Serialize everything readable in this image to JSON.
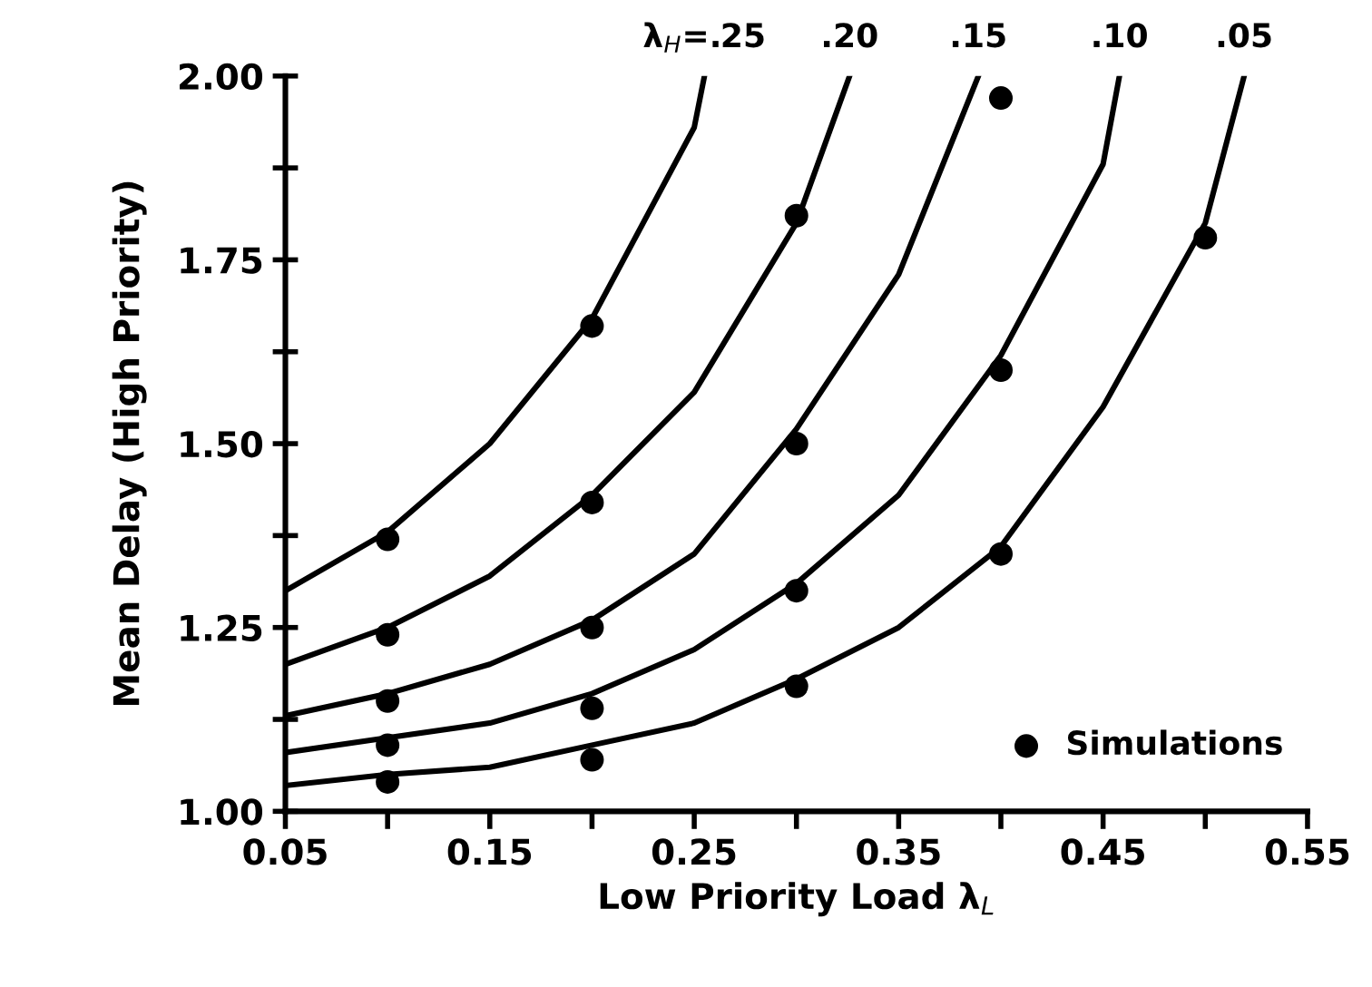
{
  "chart_data": {
    "type": "line",
    "xlabel": "Low Priority Load λ$_{L}$",
    "ylabel": "Mean Delay (High Priority)",
    "xlim": [
      0.05,
      0.55
    ],
    "ylim": [
      1.0,
      2.0
    ],
    "xticks": [
      0.05,
      {
        "value": 0.1,
        "label": null
      },
      0.15,
      {
        "value": 0.2,
        "label": null
      },
      0.25,
      {
        "value": 0.3,
        "label": null
      },
      0.35,
      {
        "value": 0.4,
        "label": null
      },
      0.45,
      {
        "value": 0.5,
        "label": null
      },
      0.55
    ],
    "yticks": [
      {
        "value": 1.0,
        "label": "1.00"
      },
      {
        "value": 1.125,
        "label": null
      },
      1.25,
      {
        "value": 1.375,
        "label": null
      },
      {
        "value": 1.5,
        "label": "1.50"
      },
      {
        "value": 1.625,
        "label": null
      },
      1.75,
      {
        "value": 1.875,
        "label": null
      },
      {
        "value": 2.0,
        "label": "2.00"
      }
    ],
    "grid": false,
    "legend": "bottom right",
    "line_style": "solid",
    "marker": "none",
    "series": [
      {
        "name": "λ$_{H}$=.25",
        "color": "#000000",
        "x": [
          0.05,
          0.1,
          0.15,
          0.2,
          0.25,
          0.255
        ],
        "values": [
          1.3,
          1.38,
          1.5,
          1.67,
          1.93,
          2.0
        ]
      },
      {
        "name": ".20",
        "color": "#000000",
        "x": [
          0.05,
          0.1,
          0.15,
          0.2,
          0.25,
          0.3,
          0.326
        ],
        "values": [
          1.2,
          1.25,
          1.32,
          1.43,
          1.57,
          1.8,
          2.0
        ]
      },
      {
        "name": ".15",
        "color": "#000000",
        "x": [
          0.05,
          0.1,
          0.15,
          0.2,
          0.25,
          0.3,
          0.35,
          0.389
        ],
        "values": [
          1.13,
          1.16,
          1.2,
          1.26,
          1.35,
          1.52,
          1.73,
          2.0
        ]
      },
      {
        "name": ".10",
        "color": "#000000",
        "x": [
          0.05,
          0.1,
          0.15,
          0.2,
          0.25,
          0.3,
          0.35,
          0.4,
          0.45,
          0.458
        ],
        "values": [
          1.08,
          1.1,
          1.12,
          1.16,
          1.22,
          1.31,
          1.43,
          1.62,
          1.88,
          2.0
        ]
      },
      {
        "name": ".05",
        "color": "#000000",
        "x": [
          0.05,
          0.1,
          0.15,
          0.2,
          0.25,
          0.3,
          0.35,
          0.4,
          0.45,
          0.5,
          0.519
        ],
        "values": [
          1.035,
          1.05,
          1.06,
          1.09,
          1.12,
          1.18,
          1.25,
          1.36,
          1.55,
          1.8,
          2.0
        ]
      },
      {
        "name": "Simulations",
        "type": "scatter",
        "marker": "circle",
        "color": "#000000",
        "x": [
          0.1,
          0.2,
          0.1,
          0.2,
          0.3,
          0.1,
          0.2,
          0.3,
          0.4,
          0.1,
          0.2,
          0.3,
          0.4,
          0.1,
          0.2,
          0.3,
          0.4,
          0.5
        ],
        "values": [
          1.37,
          1.66,
          1.24,
          1.42,
          1.81,
          1.15,
          1.25,
          1.5,
          1.97,
          1.09,
          1.14,
          1.3,
          1.6,
          1.04,
          1.07,
          1.17,
          1.35,
          1.78
        ]
      }
    ]
  }
}
